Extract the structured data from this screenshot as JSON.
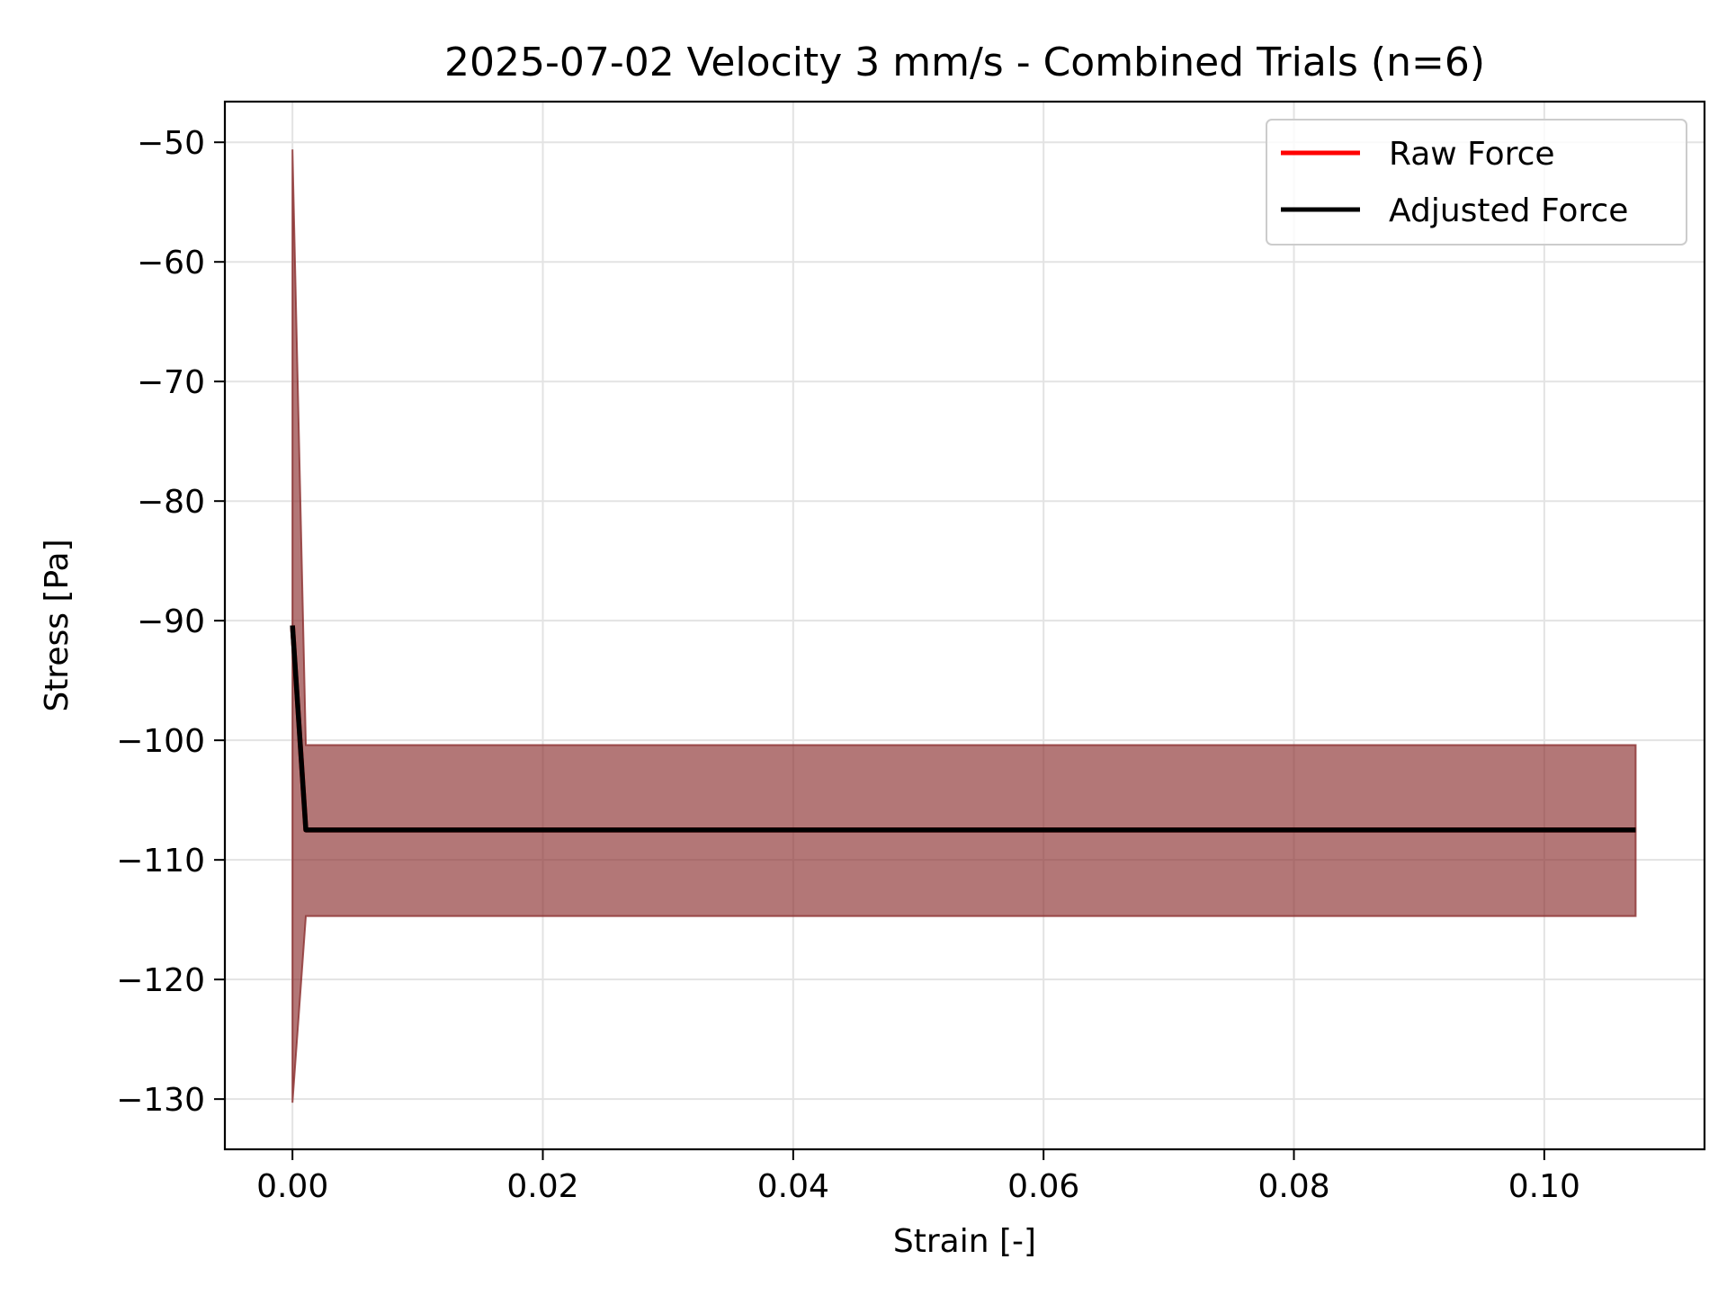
{
  "chart_data": {
    "type": "line",
    "title": "2025-07-02 Velocity 3 mm/s - Combined Trials (n=6)",
    "xlabel": "Strain [-]",
    "ylabel": "Stress [Pa]",
    "xlim": [
      -0.0054,
      0.1128
    ],
    "ylim": [
      -134.2,
      -46.6
    ],
    "x_ticks": [
      0.0,
      0.02,
      0.04,
      0.06,
      0.08,
      0.1
    ],
    "x_tick_labels": [
      "0.00",
      "0.02",
      "0.04",
      "0.06",
      "0.08",
      "0.10"
    ],
    "y_ticks": [
      -50,
      -60,
      -70,
      -80,
      -90,
      -100,
      -110,
      -120,
      -130
    ],
    "y_tick_labels": [
      "−50",
      "−60",
      "−70",
      "−80",
      "−90",
      "−100",
      "−110",
      "−120",
      "−130"
    ],
    "grid": true,
    "legend_position": "top-right",
    "series": [
      {
        "name": "Raw Force",
        "color": "#ff0000",
        "x": [
          0.0,
          0.00107,
          0.1073
        ],
        "y": [
          -90.4,
          -107.5,
          -107.5
        ]
      },
      {
        "name": "Adjusted Force",
        "color": "#000000",
        "x": [
          0.0,
          0.00107,
          0.1073
        ],
        "y": [
          -90.4,
          -107.5,
          -107.5
        ]
      }
    ],
    "band": {
      "color": "#8b2e2e",
      "x": [
        0.0,
        0.00107,
        0.1073
      ],
      "upper": [
        -50.6,
        -100.4,
        -100.4
      ],
      "lower": [
        -130.3,
        -114.7,
        -114.7
      ]
    }
  }
}
